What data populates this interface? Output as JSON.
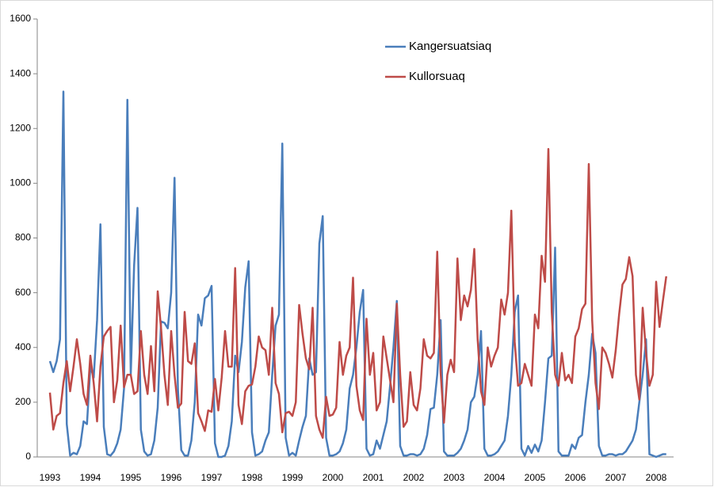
{
  "chart_data": {
    "type": "line",
    "categories": [
      "1993",
      null,
      null,
      null,
      null,
      null,
      null,
      null,
      null,
      null,
      null,
      null,
      "1994",
      null,
      null,
      null,
      null,
      null,
      null,
      null,
      null,
      null,
      null,
      null,
      "1995",
      null,
      null,
      null,
      null,
      null,
      null,
      null,
      null,
      null,
      null,
      null,
      "1996",
      null,
      null,
      null,
      null,
      null,
      null,
      null,
      null,
      null,
      null,
      null,
      "1997",
      null,
      null,
      null,
      null,
      null,
      null,
      null,
      null,
      null,
      null,
      null,
      "1998",
      null,
      null,
      null,
      null,
      null,
      null,
      null,
      null,
      null,
      null,
      null,
      "1999",
      null,
      null,
      null,
      null,
      null,
      null,
      null,
      null,
      null,
      null,
      null,
      "2000",
      null,
      null,
      null,
      null,
      null,
      null,
      null,
      null,
      null,
      null,
      null,
      "2001",
      null,
      null,
      null,
      null,
      null,
      null,
      null,
      null,
      null,
      null,
      null,
      "2002",
      null,
      null,
      null,
      null,
      null,
      null,
      null,
      null,
      null,
      null,
      null,
      "2003",
      null,
      null,
      null,
      null,
      null,
      null,
      null,
      null,
      null,
      null,
      null,
      "2004",
      null,
      null,
      null,
      null,
      null,
      null,
      null,
      null,
      null,
      null,
      null,
      "2005",
      null,
      null,
      null,
      null,
      null,
      null,
      null,
      null,
      null,
      null,
      null,
      "2006",
      null,
      null,
      null,
      null,
      null,
      null,
      null,
      null,
      null,
      null,
      null,
      "2007",
      null,
      null,
      null,
      null,
      null,
      null,
      null,
      null,
      null,
      null,
      null,
      "2008",
      null,
      null,
      null
    ],
    "series": [
      {
        "name": "Kangersuatsiaq",
        "color": "#4a7ebb",
        "values": [
          350,
          310,
          350,
          430,
          1335,
          120,
          5,
          15,
          10,
          40,
          130,
          120,
          330,
          290,
          500,
          850,
          110,
          10,
          5,
          20,
          50,
          100,
          250,
          1305,
          300,
          700,
          910,
          100,
          20,
          5,
          10,
          60,
          180,
          495,
          490,
          470,
          600,
          1020,
          250,
          25,
          5,
          5,
          60,
          200,
          520,
          480,
          580,
          590,
          625,
          50,
          0,
          0,
          5,
          40,
          130,
          370,
          310,
          420,
          620,
          715,
          90,
          5,
          10,
          20,
          60,
          90,
          300,
          480,
          520,
          1145,
          70,
          5,
          15,
          5,
          60,
          110,
          150,
          360,
          300,
          310,
          780,
          880,
          70,
          5,
          5,
          10,
          20,
          50,
          100,
          250,
          300,
          400,
          530,
          610,
          30,
          5,
          10,
          60,
          30,
          80,
          130,
          260,
          400,
          570,
          40,
          5,
          5,
          10,
          10,
          5,
          10,
          30,
          80,
          175,
          180,
          300,
          500,
          20,
          5,
          5,
          5,
          15,
          30,
          60,
          100,
          200,
          220,
          300,
          460,
          30,
          5,
          5,
          10,
          20,
          40,
          60,
          150,
          300,
          530,
          590,
          30,
          5,
          40,
          15,
          45,
          20,
          60,
          200,
          360,
          370,
          765,
          20,
          5,
          5,
          5,
          45,
          30,
          70,
          80,
          200,
          300,
          450,
          380,
          40,
          5,
          5,
          10,
          10,
          5,
          10,
          10,
          20,
          40,
          60,
          100,
          200,
          300,
          430,
          10,
          5,
          0,
          5,
          10,
          10
        ]
      },
      {
        "name": "Kullorsuaq",
        "color": "#be4b48",
        "values": [
          235,
          100,
          150,
          160,
          270,
          350,
          240,
          330,
          430,
          340,
          230,
          190,
          370,
          270,
          130,
          330,
          440,
          460,
          475,
          200,
          280,
          480,
          255,
          300,
          300,
          230,
          240,
          460,
          300,
          230,
          405,
          240,
          605,
          470,
          300,
          190,
          460,
          300,
          180,
          195,
          530,
          350,
          340,
          415,
          160,
          130,
          95,
          170,
          165,
          285,
          170,
          290,
          460,
          330,
          330,
          690,
          190,
          120,
          240,
          260,
          265,
          330,
          440,
          400,
          390,
          300,
          545,
          270,
          230,
          90,
          160,
          165,
          150,
          200,
          555,
          450,
          360,
          320,
          545,
          150,
          100,
          70,
          220,
          150,
          155,
          180,
          420,
          300,
          370,
          400,
          655,
          260,
          170,
          135,
          505,
          300,
          380,
          170,
          200,
          440,
          360,
          280,
          200,
          560,
          300,
          110,
          130,
          310,
          190,
          170,
          250,
          430,
          370,
          360,
          380,
          750,
          310,
          125,
          300,
          355,
          310,
          725,
          500,
          590,
          550,
          610,
          760,
          430,
          240,
          190,
          400,
          330,
          370,
          400,
          575,
          520,
          600,
          900,
          420,
          260,
          270,
          340,
          300,
          260,
          520,
          470,
          735,
          640,
          1125,
          530,
          300,
          260,
          380,
          280,
          300,
          270,
          440,
          470,
          540,
          560,
          1070,
          500,
          270,
          175,
          400,
          380,
          340,
          290,
          390,
          520,
          630,
          650,
          730,
          660,
          300,
          210,
          545,
          380,
          260,
          300,
          640,
          475,
          570,
          660
        ]
      }
    ],
    "ylim": [
      0,
      1600
    ],
    "yticks": [
      0,
      200,
      400,
      600,
      800,
      1000,
      1200,
      1400,
      1600
    ],
    "grid": false,
    "legend": "top"
  }
}
